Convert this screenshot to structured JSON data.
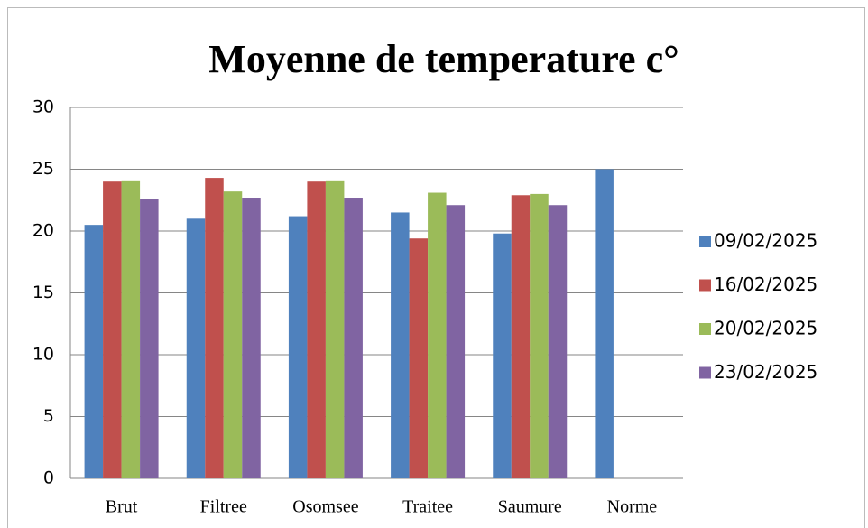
{
  "chart_data": {
    "type": "bar",
    "title": "Moyenne de temperature c°",
    "categories": [
      "Brut",
      "Filtree",
      "Osomsee",
      "Traitee",
      "Saumure",
      "Norme"
    ],
    "series": [
      {
        "name": "09/02/2025",
        "color": "#4f81bd",
        "values": [
          20.5,
          21,
          21.2,
          21.5,
          19.8,
          25
        ]
      },
      {
        "name": "16/02/2025",
        "color": "#c0504d",
        "values": [
          24,
          24.3,
          24,
          19.4,
          22.9,
          null
        ]
      },
      {
        "name": "20/02/2025",
        "color": "#9bbb59",
        "values": [
          24.1,
          23.2,
          24.1,
          23.1,
          23,
          null
        ]
      },
      {
        "name": "23/02/2025",
        "color": "#8064a2",
        "values": [
          22.6,
          22.7,
          22.7,
          22.1,
          22.1,
          null
        ]
      }
    ],
    "ylim": [
      0,
      30
    ],
    "yticks": [
      0,
      5,
      10,
      15,
      20,
      25,
      30
    ],
    "grid": true,
    "legend": "right"
  }
}
